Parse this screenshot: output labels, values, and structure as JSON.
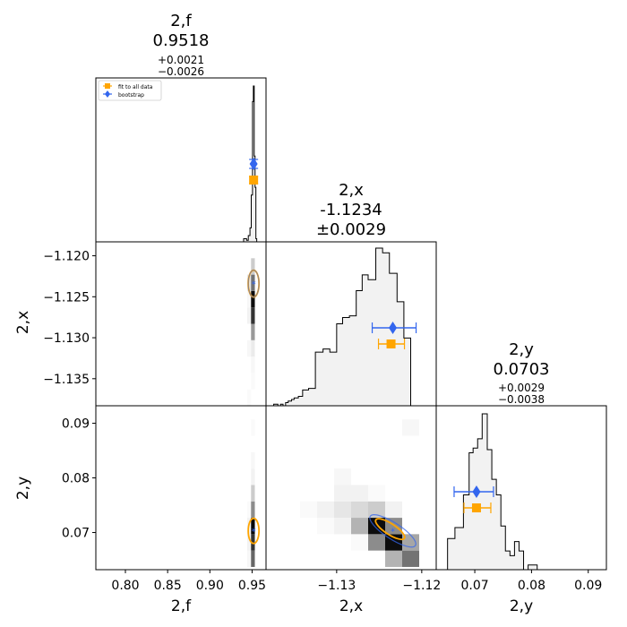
{
  "chart_data": {
    "type": "corner",
    "parameters": [
      {
        "key": "f",
        "label": "2,f",
        "value": "0.9518",
        "err_plus": "+0.0021",
        "err_minus": "−0.0026",
        "err_sym": ""
      },
      {
        "key": "x",
        "label": "2,x",
        "value": "-1.1234",
        "err_plus": "",
        "err_minus": "",
        "err_sym": "±0.0029"
      },
      {
        "key": "y",
        "label": "2,y",
        "value": "0.0703",
        "err_plus": "+0.0029",
        "err_minus": "−0.0038",
        "err_sym": ""
      }
    ],
    "axes": {
      "f": {
        "range": [
          0.765,
          0.9665
        ],
        "ticks": [
          0.8,
          0.85,
          0.9,
          0.95
        ],
        "tick_labels": [
          "0.80",
          "0.85",
          "0.90",
          "0.95"
        ]
      },
      "x": {
        "range": [
          -1.1383,
          -1.1183
        ],
        "ticks": [
          -1.12,
          -1.125,
          -1.13,
          -1.135
        ],
        "tick_labels": [
          "−1.120",
          "−1.125",
          "−1.130",
          "−1.135"
        ],
        "bottom_ticks": [
          -1.13,
          -1.12
        ],
        "bottom_tick_labels": [
          "−1.13",
          "−1.12"
        ]
      },
      "y": {
        "range": [
          0.0632,
          0.0932
        ],
        "ticks": [
          0.07,
          0.08,
          0.09
        ],
        "tick_labels": [
          "0.07",
          "0.08",
          "0.09"
        ]
      }
    },
    "legend": {
      "position": "top-left",
      "entries": [
        {
          "label": "fit to all data",
          "color": "#ffa500",
          "marker": "square"
        },
        {
          "label": "bootstrap",
          "color": "#3366ee",
          "marker": "diamond"
        }
      ]
    },
    "colors": {
      "fit": "#ffa500",
      "bootstrap": "#3366ee",
      "hist_fill": "#f2f2f2",
      "hist_line": "#000000"
    },
    "estimates": {
      "fit": {
        "f": 0.9518,
        "x": -1.1234,
        "y": 0.0703,
        "f_err": [
          0.0026,
          0.0021
        ],
        "x_err": [
          0.0029,
          0.0029
        ],
        "y_err": [
          0.0038,
          0.0029
        ]
      },
      "bootstrap": {
        "f": 0.9518,
        "x": -1.1234,
        "y": 0.0703
      }
    },
    "hist_f": {
      "edges": [
        0.929,
        0.94,
        0.9435,
        0.9455,
        0.9475,
        0.949,
        0.9505,
        0.9515,
        0.9525,
        0.9535,
        0.9545,
        0.9555,
        0.9665
      ],
      "counts": [
        0.0,
        0.02,
        0.01,
        0.04,
        0.09,
        0.3,
        0.9,
        1.0,
        0.55,
        0.35,
        0.02,
        0.0
      ]
    },
    "hist_x": {
      "edges": [
        -1.1383,
        -1.1374,
        -1.1369,
        -1.1366,
        -1.1363,
        -1.136,
        -1.1357,
        -1.1353,
        -1.135,
        -1.1345,
        -1.134,
        -1.1333,
        -1.1325,
        -1.1316,
        -1.1308,
        -1.13,
        -1.1293,
        -1.1285,
        -1.1277,
        -1.127,
        -1.1263,
        -1.1254,
        -1.1246,
        -1.1238,
        -1.1229,
        -1.1221,
        -1.1213,
        -1.1205
      ],
      "counts": [
        0.0,
        0.01,
        0.0,
        0.01,
        0.0,
        0.02,
        0.03,
        0.04,
        0.05,
        0.06,
        0.1,
        0.11,
        0.34,
        0.36,
        0.34,
        0.52,
        0.56,
        0.57,
        0.73,
        0.83,
        0.8,
        1.0,
        0.97,
        0.84,
        0.66,
        0.43,
        0.0
      ]
    },
    "hist_y": {
      "edges": [
        0.0632,
        0.0652,
        0.0665,
        0.068,
        0.069,
        0.0697,
        0.0705,
        0.0713,
        0.0722,
        0.073,
        0.0738,
        0.0746,
        0.0754,
        0.0762,
        0.077,
        0.0778,
        0.0786,
        0.0794,
        0.0805,
        0.081,
        0.089,
        0.0932
      ],
      "counts": [
        0.0,
        0.2,
        0.27,
        0.48,
        0.75,
        0.78,
        0.84,
        1.0,
        0.77,
        0.58,
        0.48,
        0.28,
        0.12,
        0.09,
        0.18,
        0.12,
        0.0,
        0.03,
        0.03,
        0.0,
        0.0
      ]
    },
    "hist2d_fx": {
      "xcells": [
        0.942,
        0.9465,
        0.951,
        0.9555
      ],
      "ycells": [
        -1.1373,
        -1.1353,
        -1.1333,
        -1.1313,
        -1.1293,
        -1.1273,
        -1.1253,
        -1.1233,
        -1.1213,
        -1.1193
      ],
      "z": [
        [
          0.0,
          0.02,
          0.0,
          0.0
        ],
        [
          0.0,
          0.0,
          0.02,
          0.0
        ],
        [
          0.0,
          0.0,
          0.03,
          0.0
        ],
        [
          0.0,
          0.03,
          0.08,
          0.0
        ],
        [
          0.0,
          0.0,
          0.4,
          0.0
        ],
        [
          0.0,
          0.05,
          0.8,
          0.0
        ],
        [
          0.0,
          0.03,
          0.95,
          0.0
        ],
        [
          0.0,
          0.1,
          0.55,
          0.0
        ],
        [
          0.0,
          0.0,
          0.2,
          0.0
        ],
        [
          0.0,
          0.0,
          0.0,
          0.0
        ]
      ]
    },
    "hist2d_fy": {
      "xcells": [
        0.942,
        0.9465,
        0.951,
        0.9555
      ],
      "ycells": [
        0.0652,
        0.0682,
        0.0712,
        0.0742,
        0.0772,
        0.0802,
        0.0832,
        0.0862,
        0.0892,
        0.0922
      ],
      "z": [
        [
          0.0,
          0.03,
          0.6,
          0.0
        ],
        [
          0.0,
          0.05,
          0.8,
          0.0
        ],
        [
          0.0,
          0.05,
          0.97,
          0.0
        ],
        [
          0.0,
          0.02,
          0.45,
          0.0
        ],
        [
          0.0,
          0.0,
          0.2,
          0.0
        ],
        [
          0.0,
          0.0,
          0.05,
          0.0
        ],
        [
          0.0,
          0.0,
          0.03,
          0.0
        ],
        [
          0.0,
          0.0,
          0.0,
          0.0
        ],
        [
          0.0,
          0.0,
          0.02,
          0.0
        ],
        [
          0.0,
          0.0,
          0.0,
          0.0
        ]
      ]
    },
    "hist2d_xy": {
      "xcells": [
        -1.1373,
        -1.1353,
        -1.1333,
        -1.1313,
        -1.1293,
        -1.1273,
        -1.1253,
        -1.1233,
        -1.1213,
        -1.1193
      ],
      "ycells": [
        0.0652,
        0.0682,
        0.0712,
        0.0742,
        0.0772,
        0.0802,
        0.0832,
        0.0862,
        0.0892,
        0.0922
      ],
      "z": [
        [
          0.0,
          0.0,
          0.0,
          0.0,
          0.0,
          0.0,
          0.0,
          0.3,
          0.55,
          0.0
        ],
        [
          0.0,
          0.0,
          0.0,
          0.0,
          0.0,
          0.02,
          0.45,
          0.95,
          0.35,
          0.0
        ],
        [
          0.0,
          0.0,
          0.0,
          0.02,
          0.05,
          0.3,
          0.95,
          0.45,
          0.0,
          0.0
        ],
        [
          0.0,
          0.0,
          0.02,
          0.05,
          0.1,
          0.15,
          0.2,
          0.05,
          0.0,
          0.0
        ],
        [
          0.0,
          0.0,
          0.0,
          0.0,
          0.05,
          0.05,
          0.02,
          0.0,
          0.0,
          0.0
        ],
        [
          0.0,
          0.0,
          0.0,
          0.0,
          0.03,
          0.0,
          0.0,
          0.0,
          0.0,
          0.0
        ],
        [
          0.0,
          0.0,
          0.0,
          0.0,
          0.0,
          0.0,
          0.0,
          0.0,
          0.0,
          0.0
        ],
        [
          0.0,
          0.0,
          0.0,
          0.0,
          0.0,
          0.0,
          0.0,
          0.0,
          0.0,
          0.0
        ],
        [
          0.0,
          0.0,
          0.0,
          0.0,
          0.0,
          0.0,
          0.0,
          0.0,
          0.03,
          0.0
        ],
        [
          0.0,
          0.0,
          0.0,
          0.0,
          0.0,
          0.0,
          0.0,
          0.0,
          0.0,
          0.0
        ]
      ]
    }
  }
}
